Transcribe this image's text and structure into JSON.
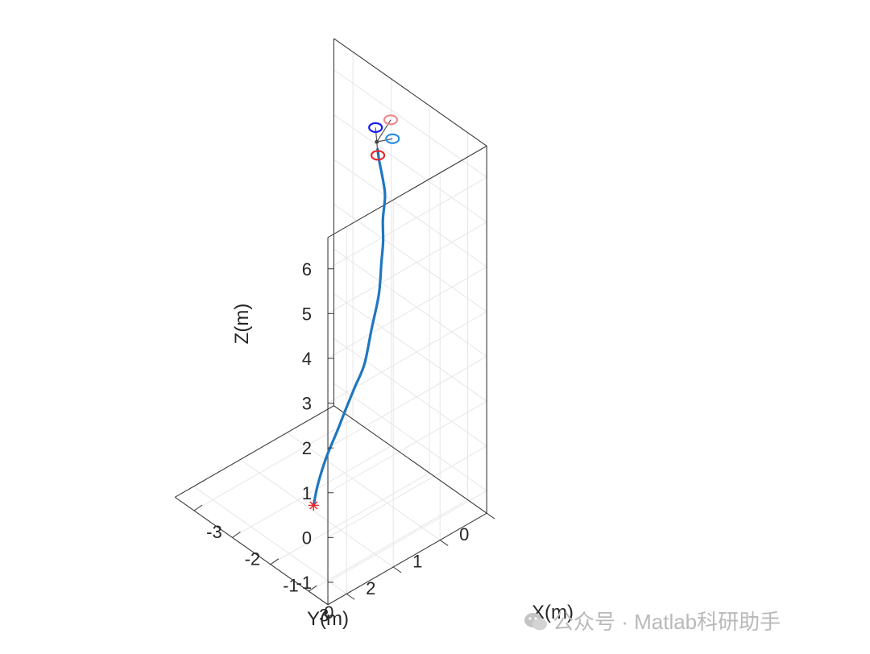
{
  "chart_data": {
    "type": "line3d",
    "xlabel": "X(m)",
    "ylabel": "Y(m)",
    "zlabel": "Z(m)",
    "xlim": [
      -3.5,
      0.5
    ],
    "ylim": [
      0,
      3.4
    ],
    "zlim": [
      -1.5,
      6.7
    ],
    "x_ticks": [
      "-3",
      "-2",
      "-1",
      "0"
    ],
    "x_tick_values": [
      -3,
      -2,
      -1,
      0
    ],
    "y_ticks": [
      "0",
      "1",
      "2",
      "3"
    ],
    "y_tick_values": [
      0,
      1,
      2,
      3
    ],
    "z_ticks": [
      "-1",
      "0",
      "1",
      "2",
      "3",
      "4",
      "5",
      "6"
    ],
    "z_tick_values": [
      -1,
      0,
      1,
      2,
      3,
      4,
      5,
      6
    ],
    "grid": true,
    "series": [
      {
        "color": "#1f77c0",
        "points": [
          [
            0.04,
            3.33,
            0.4
          ],
          [
            0.03,
            3.23,
            0.8
          ],
          [
            -0.0,
            3.03,
            1.25
          ],
          [
            -0.1,
            2.7,
            1.62
          ],
          [
            -0.2,
            2.45,
            1.86
          ],
          [
            -0.35,
            2.13,
            2.08
          ],
          [
            -0.5,
            1.8,
            2.31
          ],
          [
            -0.8,
            1.4,
            2.68
          ],
          [
            -1.1,
            1.0,
            3.03
          ],
          [
            -1.4,
            0.7,
            3.38
          ],
          [
            -1.6,
            0.5,
            3.6
          ],
          [
            -1.85,
            0.3,
            3.83
          ],
          [
            -2.1,
            0.05,
            4.05
          ],
          [
            -2.3,
            -0.07,
            4.22
          ],
          [
            -2.47,
            -0.13,
            4.5
          ],
          [
            -2.55,
            -0.16,
            4.7
          ]
        ]
      }
    ],
    "start_marker": {
      "symbol": "*",
      "color": "#e8262b",
      "point": [
        0.04,
        3.33,
        0.4
      ]
    },
    "quadrotor": {
      "center": [
        -2.62,
        -0.2,
        4.8
      ],
      "rotors": [
        {
          "color": "#2a8fe6",
          "offset": [
            0.35,
            -0.05,
            0.25
          ]
        },
        {
          "color": "#ef8a8f",
          "offset": [
            -0.15,
            -0.42,
            0.15
          ]
        },
        {
          "color": "#e8262b",
          "offset": [
            0.15,
            0.1,
            -0.15
          ]
        },
        {
          "color": "#1a1af0",
          "offset": [
            -0.4,
            -0.3,
            -0.1
          ]
        }
      ]
    }
  },
  "watermark": {
    "text": "公众号 · Matlab科研助手"
  }
}
